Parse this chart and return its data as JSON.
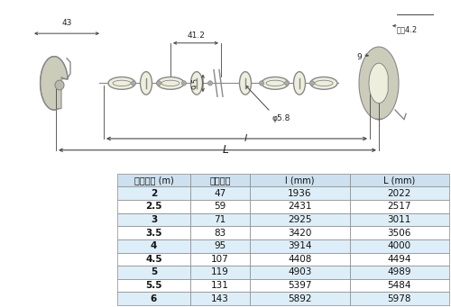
{
  "diagram_bg": "#eeeedd",
  "table_header_bg": "#cde0ef",
  "table_row_bg_even": "#deeef8",
  "table_row_bg_odd": "#ffffff",
  "table_border": "#888888",
  "header_cols": [
    "呼び長さ (m)",
    "リンク数",
    "l (mm)",
    "L (mm)"
  ],
  "rows": [
    [
      "2",
      "47",
      "1936",
      "2022"
    ],
    [
      "2.5",
      "59",
      "2431",
      "2517"
    ],
    [
      "3",
      "71",
      "2925",
      "3011"
    ],
    [
      "3.5",
      "83",
      "3420",
      "3506"
    ],
    [
      "4",
      "95",
      "3914",
      "4000"
    ],
    [
      "4.5",
      "107",
      "4408",
      "4494"
    ],
    [
      "5",
      "119",
      "4903",
      "4989"
    ],
    [
      "5.5",
      "131",
      "5397",
      "5484"
    ],
    [
      "6",
      "143",
      "5892",
      "5978"
    ]
  ],
  "chain_color": "#888888",
  "dim_color": "#444444",
  "text_color": "#222222"
}
